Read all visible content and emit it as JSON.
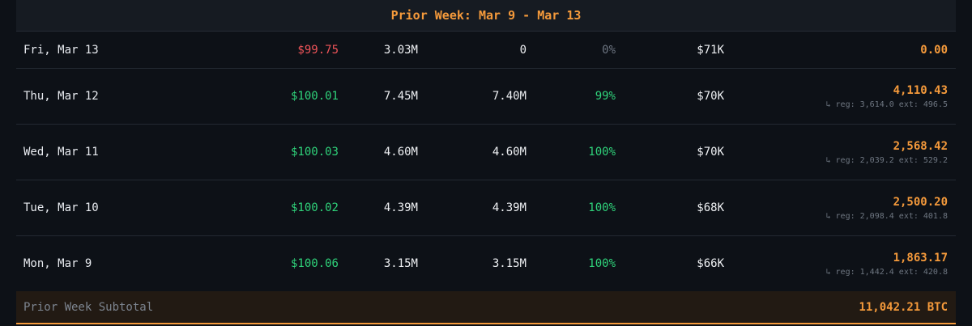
{
  "section_title": "Prior Week: Mar 9 - Mar 13",
  "rows": [
    {
      "date": "Fri, Mar 13",
      "price": "$99.75",
      "volume": "3.03M",
      "filled": "0",
      "pct": "0%",
      "mcap": "$71K",
      "total": "0.00",
      "detail": ""
    },
    {
      "date": "Thu, Mar 12",
      "price": "$100.01",
      "volume": "7.45M",
      "filled": "7.40M",
      "pct": "99%",
      "mcap": "$70K",
      "total": "4,110.43",
      "detail": "↳ reg: 3,614.0 ext: 496.5"
    },
    {
      "date": "Wed, Mar 11",
      "price": "$100.03",
      "volume": "4.60M",
      "filled": "4.60M",
      "pct": "100%",
      "mcap": "$70K",
      "total": "2,568.42",
      "detail": "↳ reg: 2,039.2 ext: 529.2"
    },
    {
      "date": "Tue, Mar 10",
      "price": "$100.02",
      "volume": "4.39M",
      "filled": "4.39M",
      "pct": "100%",
      "mcap": "$68K",
      "total": "2,500.20",
      "detail": "↳ reg: 2,098.4 ext: 401.8"
    },
    {
      "date": "Mon, Mar 9",
      "price": "$100.06",
      "volume": "3.15M",
      "filled": "3.15M",
      "pct": "100%",
      "mcap": "$66K",
      "total": "1,863.17",
      "detail": "↳ reg: 1,442.4 ext: 420.8"
    }
  ],
  "subtotal": {
    "label": "Prior Week Subtotal",
    "value": "11,042.21 BTC"
  },
  "colors": {
    "accent": "#f59a3b",
    "positive": "#2fd27a",
    "negative": "#ef5459",
    "muted": "#6c7480"
  }
}
